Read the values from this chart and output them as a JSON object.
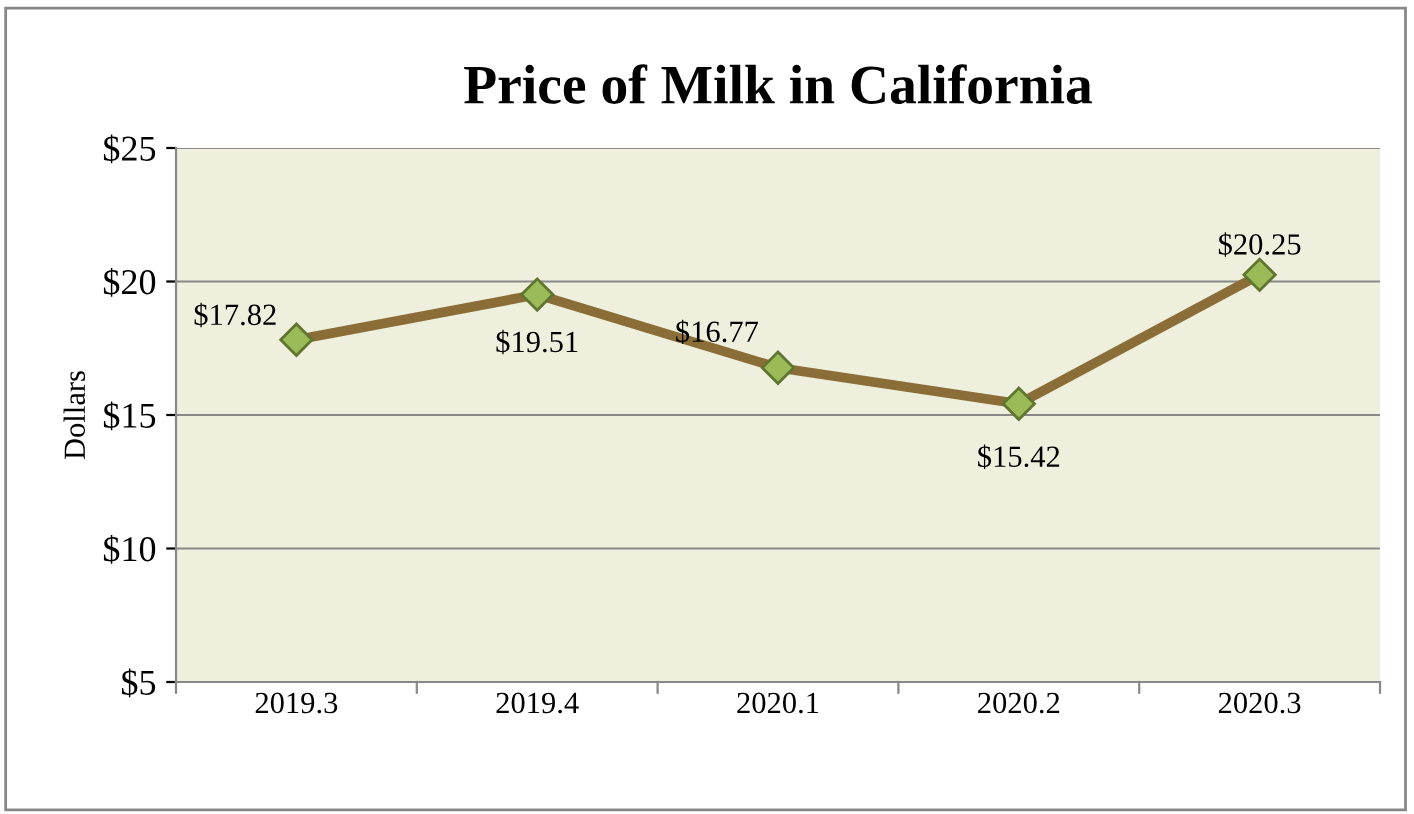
{
  "chart_data": {
    "type": "line",
    "title": "Price of Milk in California",
    "ylabel": "Dollars",
    "categories": [
      "2019.3",
      "2019.4",
      "2020.1",
      "2020.2",
      "2020.3"
    ],
    "series": [
      {
        "color": "#8b6d38",
        "values": [
          17.82,
          19.51,
          16.77,
          15.42,
          20.25
        ],
        "value_labels": [
          "$17.82",
          "$19.51",
          "$16.77",
          "$15.42",
          "$20.25"
        ]
      }
    ],
    "ylim": [
      5,
      25
    ],
    "yticks": [
      {
        "value": 5,
        "label": "$5"
      },
      {
        "value": 10,
        "label": "$10"
      },
      {
        "value": 15,
        "label": "$15"
      },
      {
        "value": 20,
        "label": "$20"
      },
      {
        "value": 25,
        "label": "$25"
      }
    ],
    "grid": "y",
    "marker": "diamond",
    "line_style": "solid",
    "legend": false
  }
}
